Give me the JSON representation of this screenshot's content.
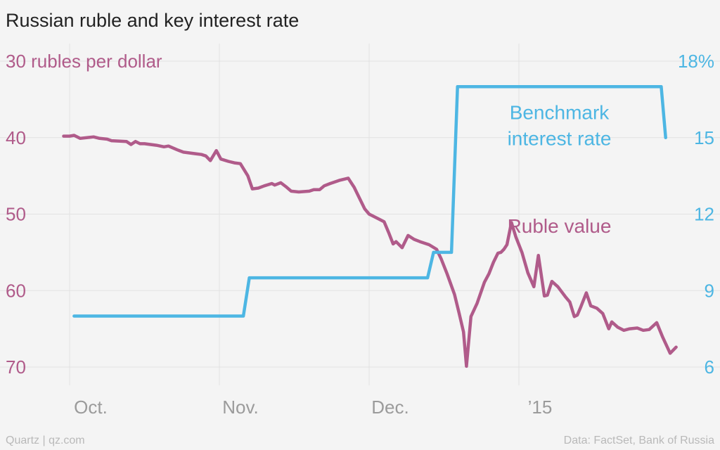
{
  "title": "Russian ruble and key interest rate",
  "footer": {
    "left": "Quartz | qz.com",
    "right": "Data: FactSet, Bank of Russia"
  },
  "chart_data": {
    "type": "line",
    "title": "Russian ruble and key interest rate",
    "x": {
      "range": [
        -0.2,
        4.05
      ],
      "ticks": [
        {
          "pos": 0,
          "label": "Oct."
        },
        {
          "pos": 1,
          "label": "Nov."
        },
        {
          "pos": 2,
          "label": "Dec."
        },
        {
          "pos": 3,
          "label": "’15"
        }
      ]
    },
    "y_left": {
      "label": "rubles per dollar",
      "range": [
        30,
        70
      ],
      "inverted": true,
      "ticks": [
        {
          "value": 30,
          "label": "30 rubles per dollar"
        },
        {
          "value": 40,
          "label": "40"
        },
        {
          "value": 50,
          "label": "50"
        },
        {
          "value": 60,
          "label": "60"
        },
        {
          "value": 70,
          "label": "70"
        }
      ]
    },
    "y_right": {
      "label": "%",
      "range": [
        6,
        18
      ],
      "ticks": [
        {
          "value": 18,
          "label": "18%"
        },
        {
          "value": 15,
          "label": "15"
        },
        {
          "value": 12,
          "label": "12"
        },
        {
          "value": 9,
          "label": "9"
        },
        {
          "value": 6,
          "label": "6"
        }
      ]
    },
    "series": [
      {
        "name": "Ruble value",
        "axis": "left",
        "color": "#b05b8a",
        "label_pos": [
          3.27,
          51.5
        ],
        "points": [
          [
            -0.04,
            39.8
          ],
          [
            0.0,
            39.8
          ],
          [
            0.03,
            39.7
          ],
          [
            0.07,
            40.1
          ],
          [
            0.16,
            39.9
          ],
          [
            0.2,
            40.1
          ],
          [
            0.25,
            40.2
          ],
          [
            0.28,
            40.4
          ],
          [
            0.38,
            40.5
          ],
          [
            0.41,
            40.9
          ],
          [
            0.44,
            40.5
          ],
          [
            0.47,
            40.8
          ],
          [
            0.5,
            40.8
          ],
          [
            0.58,
            41.0
          ],
          [
            0.63,
            41.2
          ],
          [
            0.66,
            41.1
          ],
          [
            0.72,
            41.6
          ],
          [
            0.76,
            41.9
          ],
          [
            0.84,
            42.1
          ],
          [
            0.88,
            42.2
          ],
          [
            0.91,
            42.4
          ],
          [
            0.94,
            43.0
          ],
          [
            0.98,
            41.7
          ],
          [
            1.01,
            42.8
          ],
          [
            1.06,
            43.1
          ],
          [
            1.1,
            43.3
          ],
          [
            1.14,
            43.4
          ],
          [
            1.19,
            45.0
          ],
          [
            1.22,
            46.7
          ],
          [
            1.26,
            46.6
          ],
          [
            1.3,
            46.3
          ],
          [
            1.35,
            46.0
          ],
          [
            1.37,
            46.2
          ],
          [
            1.41,
            45.9
          ],
          [
            1.45,
            46.5
          ],
          [
            1.48,
            47.0
          ],
          [
            1.53,
            47.1
          ],
          [
            1.6,
            47.0
          ],
          [
            1.63,
            46.8
          ],
          [
            1.67,
            46.8
          ],
          [
            1.7,
            46.3
          ],
          [
            1.74,
            46.0
          ],
          [
            1.8,
            45.6
          ],
          [
            1.86,
            45.3
          ],
          [
            1.9,
            46.5
          ],
          [
            1.93,
            47.7
          ],
          [
            1.97,
            49.3
          ],
          [
            2.0,
            50.0
          ],
          [
            2.06,
            50.6
          ],
          [
            2.1,
            51.0
          ],
          [
            2.13,
            52.4
          ],
          [
            2.16,
            53.9
          ],
          [
            2.18,
            53.6
          ],
          [
            2.22,
            54.4
          ],
          [
            2.26,
            52.8
          ],
          [
            2.3,
            53.3
          ],
          [
            2.34,
            53.6
          ],
          [
            2.4,
            54.0
          ],
          [
            2.45,
            54.6
          ],
          [
            2.48,
            55.8
          ],
          [
            2.52,
            57.8
          ],
          [
            2.57,
            60.5
          ],
          [
            2.6,
            62.9
          ],
          [
            2.63,
            65.4
          ],
          [
            2.65,
            69.9
          ],
          [
            2.68,
            63.4
          ],
          [
            2.72,
            61.7
          ],
          [
            2.77,
            58.9
          ],
          [
            2.8,
            57.8
          ],
          [
            2.83,
            56.3
          ],
          [
            2.86,
            55.1
          ],
          [
            2.88,
            55.0
          ],
          [
            2.9,
            54.6
          ],
          [
            2.92,
            54.0
          ],
          [
            2.95,
            51.1
          ],
          [
            2.98,
            53.0
          ],
          [
            3.02,
            55.0
          ],
          [
            3.06,
            57.7
          ],
          [
            3.1,
            59.5
          ],
          [
            3.13,
            55.4
          ],
          [
            3.17,
            60.7
          ],
          [
            3.19,
            60.6
          ],
          [
            3.22,
            58.8
          ],
          [
            3.26,
            59.5
          ],
          [
            3.31,
            60.8
          ],
          [
            3.34,
            61.5
          ],
          [
            3.37,
            63.4
          ],
          [
            3.39,
            63.2
          ],
          [
            3.41,
            62.3
          ],
          [
            3.45,
            60.3
          ],
          [
            3.48,
            62.0
          ],
          [
            3.52,
            62.3
          ],
          [
            3.56,
            63.0
          ],
          [
            3.6,
            65.0
          ],
          [
            3.62,
            64.1
          ],
          [
            3.66,
            64.8
          ],
          [
            3.7,
            65.2
          ],
          [
            3.74,
            65.0
          ],
          [
            3.79,
            64.9
          ],
          [
            3.83,
            65.2
          ],
          [
            3.87,
            65.1
          ],
          [
            3.92,
            64.2
          ],
          [
            3.96,
            66.1
          ],
          [
            4.01,
            68.2
          ],
          [
            4.05,
            67.4
          ]
        ]
      },
      {
        "name": "Benchmark interest rate",
        "label_line1": "Benchmark",
        "label_line2": "interest rate",
        "axis": "right",
        "color": "#4db6e3",
        "label_pos": [
          3.27,
          16.0
        ],
        "points": [
          [
            0.03,
            8.0
          ],
          [
            1.16,
            8.0
          ],
          [
            1.2,
            9.5
          ],
          [
            2.39,
            9.5
          ],
          [
            2.43,
            10.5
          ],
          [
            2.55,
            10.5
          ],
          [
            2.59,
            17.0
          ],
          [
            3.95,
            17.0
          ],
          [
            3.98,
            15.0
          ]
        ]
      }
    ]
  }
}
